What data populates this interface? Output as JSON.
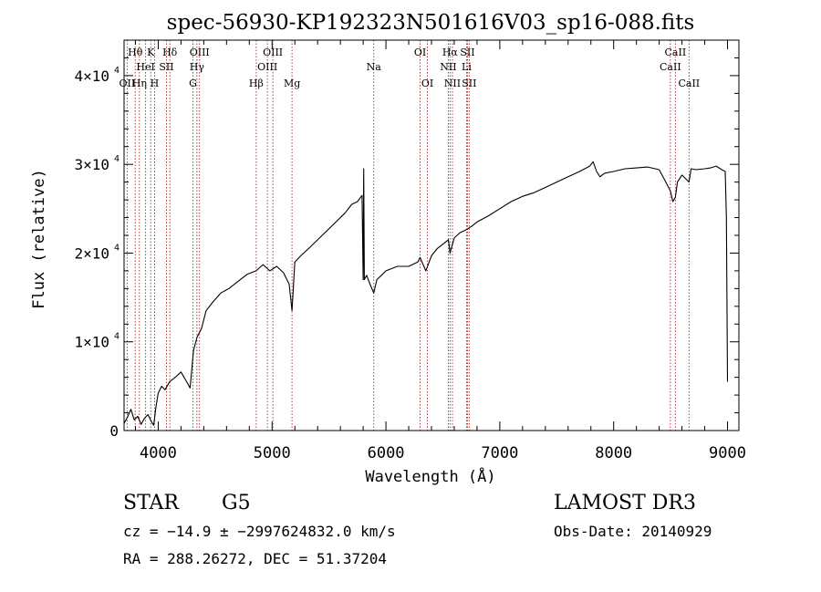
{
  "chart_data": {
    "type": "line",
    "title": "spec-56930-KP192323N501616V03_sp16-088.fits",
    "xlabel": "Wavelength (Å)",
    "ylabel": "Flux (relative)",
    "xlim": [
      3700,
      9100
    ],
    "ylim": [
      0,
      44000
    ],
    "x_ticks": [
      {
        "value": 4000,
        "label": "4000"
      },
      {
        "value": 5000,
        "label": "5000"
      },
      {
        "value": 6000,
        "label": "6000"
      },
      {
        "value": 7000,
        "label": "7000"
      },
      {
        "value": 8000,
        "label": "8000"
      },
      {
        "value": 9000,
        "label": "9000"
      }
    ],
    "y_ticks": [
      {
        "value": 0,
        "mant": "0",
        "exp": ""
      },
      {
        "value": 10000,
        "mant": "1×10",
        "exp": "4"
      },
      {
        "value": 20000,
        "mant": "2×10",
        "exp": "4"
      },
      {
        "value": 30000,
        "mant": "3×10",
        "exp": "4"
      },
      {
        "value": 40000,
        "mant": "4×10",
        "exp": "4"
      }
    ],
    "line_colors": {
      "spectrum": "#000000",
      "marker": "#a52a2a"
    },
    "spectral_lines": [
      {
        "wave": 3727,
        "label": "OII",
        "row": 3
      },
      {
        "wave": 3798,
        "label": "Hθ",
        "row": 1
      },
      {
        "wave": 3835,
        "label": "Hη",
        "row": 3
      },
      {
        "wave": 3889,
        "label": "HeI",
        "row": 2
      },
      {
        "wave": 3934,
        "label": "K",
        "row": 1
      },
      {
        "wave": 3968,
        "label": "H",
        "row": 3
      },
      {
        "wave": 4072,
        "label": "SII",
        "row": 2
      },
      {
        "wave": 4102,
        "label": "Hδ",
        "row": 1
      },
      {
        "wave": 4305,
        "label": "G",
        "row": 3
      },
      {
        "wave": 4340,
        "label": "Hγ",
        "row": 2
      },
      {
        "wave": 4363,
        "label": "OIII",
        "row": 1
      },
      {
        "wave": 4861,
        "label": "Hβ",
        "row": 3
      },
      {
        "wave": 4959,
        "label": "OIII",
        "row": 2
      },
      {
        "wave": 5007,
        "label": "OIII",
        "row": 1
      },
      {
        "wave": 5175,
        "label": "Mg",
        "row": 3
      },
      {
        "wave": 5893,
        "label": "Na",
        "row": 2
      },
      {
        "wave": 6300,
        "label": "OI",
        "row": 1
      },
      {
        "wave": 6364,
        "label": "OI",
        "row": 3
      },
      {
        "wave": 6548,
        "label": "NII",
        "row": 2
      },
      {
        "wave": 6563,
        "label": "Hα",
        "row": 1
      },
      {
        "wave": 6584,
        "label": "NII",
        "row": 3
      },
      {
        "wave": 6708,
        "label": "Li",
        "row": 2
      },
      {
        "wave": 6716,
        "label": "SII",
        "row": 1
      },
      {
        "wave": 6731,
        "label": "SII",
        "row": 3
      },
      {
        "wave": 8498,
        "label": "CaII",
        "row": 2
      },
      {
        "wave": 8542,
        "label": "CaII",
        "row": 1
      },
      {
        "wave": 8662,
        "label": "CaII",
        "row": 3
      }
    ],
    "spectrum": {
      "name": "flux",
      "x": [
        3700,
        3730,
        3760,
        3790,
        3820,
        3850,
        3880,
        3910,
        3940,
        3960,
        3980,
        4000,
        4030,
        4060,
        4100,
        4150,
        4200,
        4250,
        4280,
        4310,
        4340,
        4380,
        4420,
        4480,
        4550,
        4620,
        4700,
        4780,
        4860,
        4920,
        4980,
        5040,
        5100,
        5150,
        5175,
        5200,
        5260,
        5320,
        5400,
        5480,
        5560,
        5640,
        5700,
        5750,
        5790,
        5800,
        5805,
        5810,
        5830,
        5860,
        5893,
        5920,
        5960,
        6000,
        6100,
        6200,
        6280,
        6300,
        6350,
        6400,
        6450,
        6500,
        6548,
        6563,
        6584,
        6600,
        6650,
        6700,
        6750,
        6800,
        6900,
        7000,
        7100,
        7200,
        7300,
        7400,
        7500,
        7600,
        7700,
        7790,
        7820,
        7850,
        7880,
        7920,
        8000,
        8100,
        8200,
        8300,
        8400,
        8450,
        8498,
        8520,
        8542,
        8560,
        8600,
        8662,
        8680,
        8720,
        8800,
        8850,
        8900,
        8950,
        8980,
        8990,
        9000
      ],
      "y": [
        800,
        1500,
        2400,
        1200,
        1600,
        700,
        1400,
        1800,
        1000,
        600,
        2600,
        4200,
        5000,
        4600,
        5500,
        6000,
        6600,
        5500,
        4800,
        9000,
        10500,
        11500,
        13500,
        14500,
        15500,
        16000,
        16800,
        17600,
        18000,
        18700,
        18000,
        18500,
        17800,
        16500,
        13500,
        19000,
        19800,
        20500,
        21500,
        22500,
        23500,
        24500,
        25500,
        25800,
        26500,
        17000,
        29500,
        17000,
        17500,
        16500,
        15500,
        17000,
        17500,
        18000,
        18500,
        18500,
        19000,
        19500,
        18000,
        19700,
        20500,
        21000,
        21500,
        20000,
        21000,
        21700,
        22300,
        22600,
        23000,
        23500,
        24200,
        25000,
        25800,
        26400,
        26800,
        27400,
        28000,
        28600,
        29200,
        29800,
        30300,
        29200,
        28600,
        29000,
        29200,
        29500,
        29600,
        29700,
        29400,
        28200,
        27000,
        25800,
        26300,
        28000,
        28800,
        28000,
        29500,
        29400,
        29500,
        29600,
        29800,
        29400,
        29200,
        24000,
        5500
      ]
    }
  },
  "info": {
    "class_label": "STAR",
    "subclass": "G5",
    "survey": "LAMOST DR3",
    "redshift_text": "cz = −14.9 ± −2997624832.0 km/s",
    "obs_date_text": "Obs-Date: 20140929",
    "coords_text": "RA = 288.26272, DEC =  51.37204"
  }
}
